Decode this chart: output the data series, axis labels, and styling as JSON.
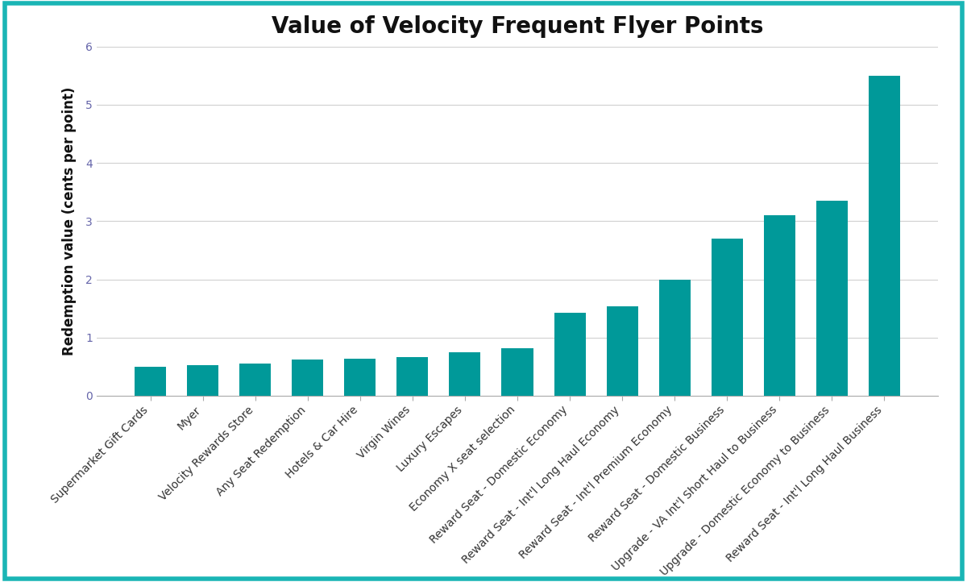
{
  "title": "Value of Velocity Frequent Flyer Points",
  "ylabel": "Redemption value (cents per point)",
  "bar_color": "#009999",
  "background_color": "#ffffff",
  "border_color": "#1ab5b5",
  "categories": [
    "Supermarket Gift Cards",
    "Myer",
    "Velocity Rewards Store",
    "Any Seat Redemption",
    "Hotels & Car Hire",
    "Virgin Wines",
    "Luxury Escapes",
    "Economy X seat selection",
    "Reward Seat - Domestic Economy",
    "Reward Seat - Int'l Long Haul Economy",
    "Reward Seat - Int'l Premium Economy",
    "Reward Seat - Domestic Business",
    "Upgrade - VA Int'l Short Haul to Business",
    "Upgrade - Domestic Economy to Business",
    "Reward Seat - Int'l Long Haul Business"
  ],
  "values": [
    0.5,
    0.52,
    0.55,
    0.62,
    0.63,
    0.67,
    0.75,
    0.82,
    1.42,
    1.53,
    2.0,
    2.7,
    3.1,
    3.35,
    5.5
  ],
  "ylim": [
    0,
    6
  ],
  "yticks": [
    0,
    1,
    2,
    3,
    4,
    5,
    6
  ],
  "grid_color": "#d0d0d0",
  "title_fontsize": 20,
  "ylabel_fontsize": 12,
  "tick_fontsize": 10,
  "ytick_color": "#6666aa",
  "xtick_color": "#333333"
}
